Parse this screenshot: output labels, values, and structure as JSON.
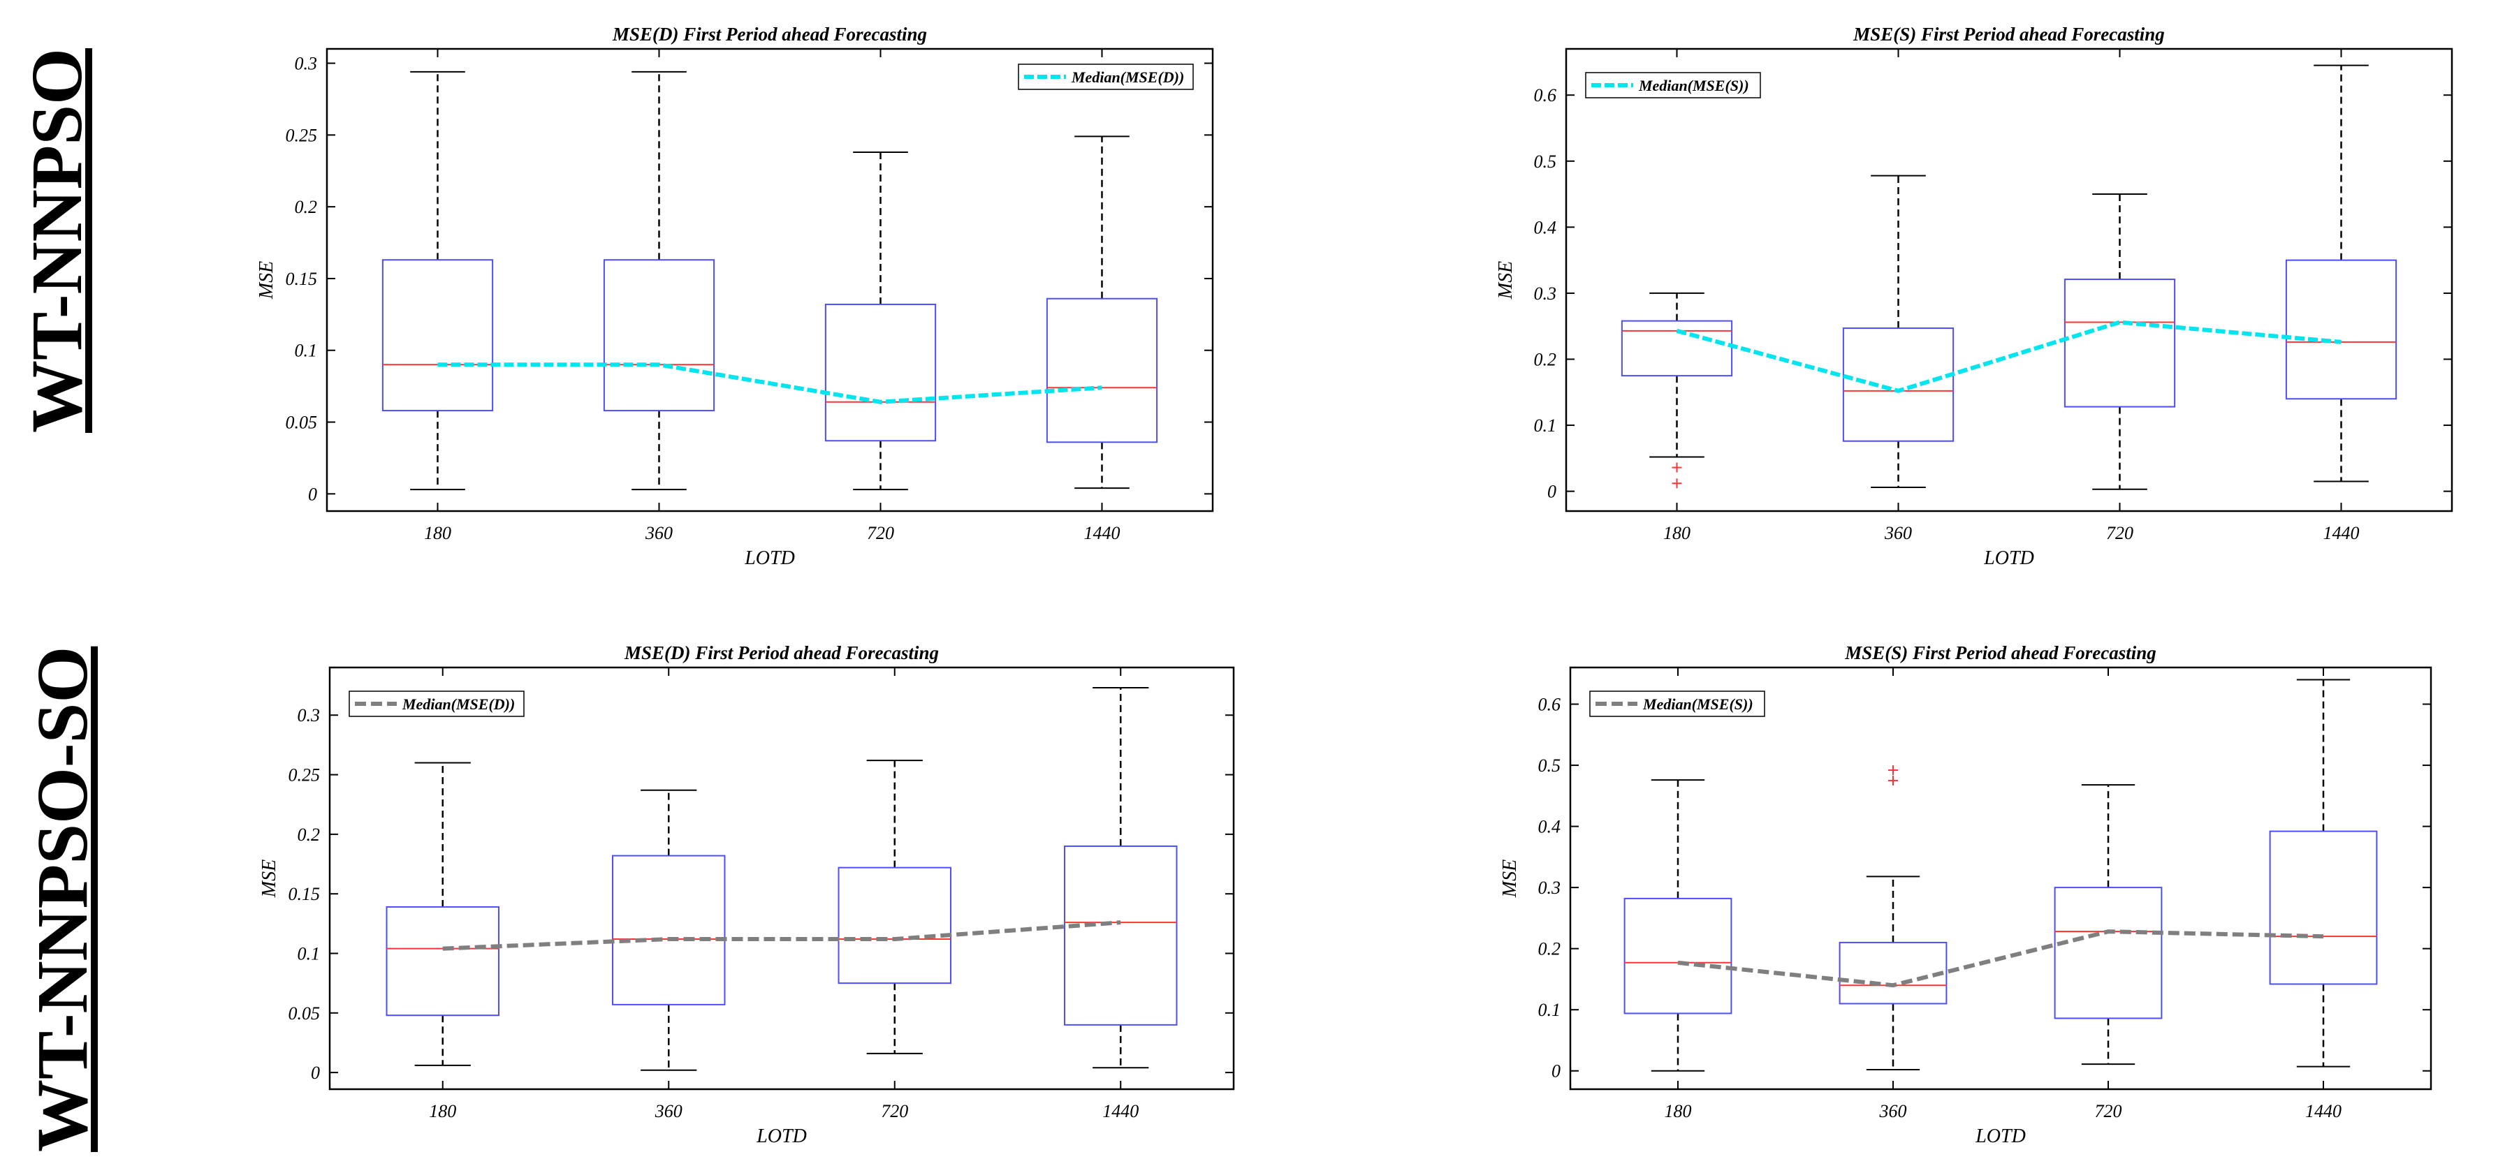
{
  "row_labels": [
    "WT-NNPSO",
    "WT-NNPSO-SO"
  ],
  "chart_data": [
    {
      "type": "box",
      "title": "MSE(D) First Period ahead Forecasting",
      "xlabel": "LOTD",
      "ylabel": "MSE",
      "categories": [
        "180",
        "360",
        "720",
        "1440"
      ],
      "ylim": [
        -0.012,
        0.31
      ],
      "yticks": [
        0,
        0.05,
        0.1,
        0.15,
        0.2,
        0.25,
        0.3
      ],
      "ytick_labels": [
        "0",
        "0.05",
        "0.1",
        "0.15",
        "0.2",
        "0.25",
        "0.3"
      ],
      "legend": {
        "label": "Median(MSE(D))",
        "location": "top-right",
        "color": "#00e5ee",
        "dash": "cyan"
      },
      "boxes": [
        {
          "min": 0.003,
          "q1": 0.058,
          "median": 0.09,
          "q3": 0.163,
          "max": 0.294,
          "outliers": []
        },
        {
          "min": 0.003,
          "q1": 0.058,
          "median": 0.09,
          "q3": 0.163,
          "max": 0.294,
          "outliers": []
        },
        {
          "min": 0.003,
          "q1": 0.037,
          "median": 0.064,
          "q3": 0.132,
          "max": 0.238,
          "outliers": []
        },
        {
          "min": 0.004,
          "q1": 0.036,
          "median": 0.074,
          "q3": 0.136,
          "max": 0.249,
          "outliers": []
        }
      ]
    },
    {
      "type": "box",
      "title": "MSE(S)  First Period ahead Forecasting",
      "xlabel": "LOTD",
      "ylabel": "MSE",
      "categories": [
        "180",
        "360",
        "720",
        "1440"
      ],
      "ylim": [
        -0.03,
        0.67
      ],
      "yticks": [
        0,
        0.1,
        0.2,
        0.3,
        0.4,
        0.5,
        0.6
      ],
      "ytick_labels": [
        "0",
        "0.1",
        "0.2",
        "0.3",
        "0.4",
        "0.5",
        "0.6"
      ],
      "legend": {
        "label": "Median(MSE(S))",
        "location": "top-left",
        "color": "#00e5ee",
        "dash": "cyan"
      },
      "boxes": [
        {
          "min": 0.052,
          "q1": 0.175,
          "median": 0.243,
          "q3": 0.258,
          "max": 0.3,
          "outliers": [
            0.012,
            0.036
          ]
        },
        {
          "min": 0.006,
          "q1": 0.076,
          "median": 0.152,
          "q3": 0.247,
          "max": 0.478,
          "outliers": []
        },
        {
          "min": 0.003,
          "q1": 0.128,
          "median": 0.256,
          "q3": 0.321,
          "max": 0.45,
          "outliers": []
        },
        {
          "min": 0.015,
          "q1": 0.14,
          "median": 0.226,
          "q3": 0.35,
          "max": 0.645,
          "outliers": []
        }
      ]
    },
    {
      "type": "box",
      "title": "MSE(D) First Period ahead Forecasting",
      "xlabel": "LOTD",
      "ylabel": "MSE",
      "categories": [
        "180",
        "360",
        "720",
        "1440"
      ],
      "ylim": [
        -0.014,
        0.34
      ],
      "yticks": [
        0,
        0.05,
        0.1,
        0.15,
        0.2,
        0.25,
        0.3
      ],
      "ytick_labels": [
        "0",
        "0.05",
        "0.1",
        "0.15",
        "0.2",
        "0.25",
        "0.3"
      ],
      "legend": {
        "label": "Median(MSE(D))",
        "location": "top-left",
        "color": "#7f7f7f",
        "dash": "gray"
      },
      "boxes": [
        {
          "min": 0.006,
          "q1": 0.048,
          "median": 0.104,
          "q3": 0.139,
          "max": 0.26,
          "outliers": []
        },
        {
          "min": 0.002,
          "q1": 0.057,
          "median": 0.112,
          "q3": 0.182,
          "max": 0.237,
          "outliers": []
        },
        {
          "min": 0.016,
          "q1": 0.075,
          "median": 0.112,
          "q3": 0.172,
          "max": 0.262,
          "outliers": []
        },
        {
          "min": 0.004,
          "q1": 0.04,
          "median": 0.126,
          "q3": 0.19,
          "max": 0.323,
          "outliers": []
        }
      ]
    },
    {
      "type": "box",
      "title": "MSE(S) First Period ahead Forecasting",
      "xlabel": "LOTD",
      "ylabel": "MSE",
      "categories": [
        "180",
        "360",
        "720",
        "1440"
      ],
      "ylim": [
        -0.03,
        0.66
      ],
      "yticks": [
        0,
        0.1,
        0.2,
        0.3,
        0.4,
        0.5,
        0.6
      ],
      "ytick_labels": [
        "0",
        "0.1",
        "0.2",
        "0.3",
        "0.4",
        "0.5",
        "0.6"
      ],
      "legend": {
        "label": "Median(MSE(S))",
        "location": "top-left",
        "color": "#7f7f7f",
        "dash": "gray"
      },
      "boxes": [
        {
          "min": 0.0,
          "q1": 0.094,
          "median": 0.177,
          "q3": 0.282,
          "max": 0.476,
          "outliers": []
        },
        {
          "min": 0.002,
          "q1": 0.11,
          "median": 0.14,
          "q3": 0.21,
          "max": 0.318,
          "outliers": [
            0.475,
            0.492
          ]
        },
        {
          "min": 0.011,
          "q1": 0.086,
          "median": 0.228,
          "q3": 0.3,
          "max": 0.468,
          "outliers": []
        },
        {
          "min": 0.007,
          "q1": 0.142,
          "median": 0.22,
          "q3": 0.392,
          "max": 0.64,
          "outliers": []
        }
      ]
    }
  ]
}
